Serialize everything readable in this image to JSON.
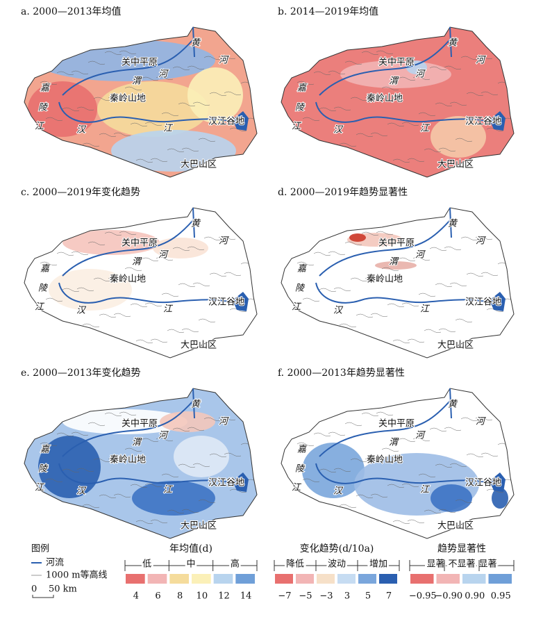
{
  "panels": [
    {
      "title": "a. 2000—2013年均值"
    },
    {
      "title": "b. 2014—2019年均值"
    },
    {
      "title": "c. 2000—2019年变化趋势"
    },
    {
      "title": "d. 2000—2019年趋势显著性"
    },
    {
      "title": "e. 2000—2013年变化趋势"
    },
    {
      "title": "f. 2000—2013年趋势显著性"
    }
  ],
  "map_labels": [
    "关中平原",
    "黄",
    "河",
    "河",
    "渭",
    "嘉",
    "秦岭山地",
    "陵",
    "江",
    "汉",
    "江",
    "汉江谷地",
    "大巴山区"
  ],
  "legend": {
    "title": "图例",
    "items": [
      "河流",
      "1000 m等高线"
    ],
    "scale": [
      "0",
      "50 km"
    ]
  },
  "annual_mean": {
    "title": "年均值(d)",
    "classes": [
      "低",
      "中",
      "高"
    ],
    "colors": [
      "#e8706f",
      "#f2b5b5",
      "#f5dc9c",
      "#fbf0b8",
      "#b8d4ee",
      "#6f9fd8"
    ],
    "ticks": [
      4,
      6,
      8,
      10,
      12,
      14
    ]
  },
  "trend": {
    "title": "变化趋势(d/10a)",
    "classes": [
      "降低",
      "波动",
      "增加"
    ],
    "colors": [
      "#e8706f",
      "#f2b5b5",
      "#f6e0c8",
      "#c6dcf2",
      "#7aa6dc",
      "#2a5fb0"
    ],
    "ticks": [
      {
        "value": -7,
        "label": "−7"
      },
      {
        "value": -5,
        "label": "−5"
      },
      {
        "value": -3,
        "label": "−3"
      },
      3,
      5,
      7
    ]
  },
  "significance": {
    "title": "趋势显著性",
    "classes": [
      "显著",
      "不显著",
      "显著"
    ],
    "colors": [
      "#e8706f",
      "#f2b5b5",
      "#b8d4ee",
      "#6f9fd8"
    ],
    "ticks": [
      {
        "value": -0.95,
        "label": "−0.95"
      },
      {
        "value": -0.9,
        "label": "−0.90"
      },
      {
        "value": 0.9,
        "label": "0.90"
      },
      0.95
    ]
  }
}
